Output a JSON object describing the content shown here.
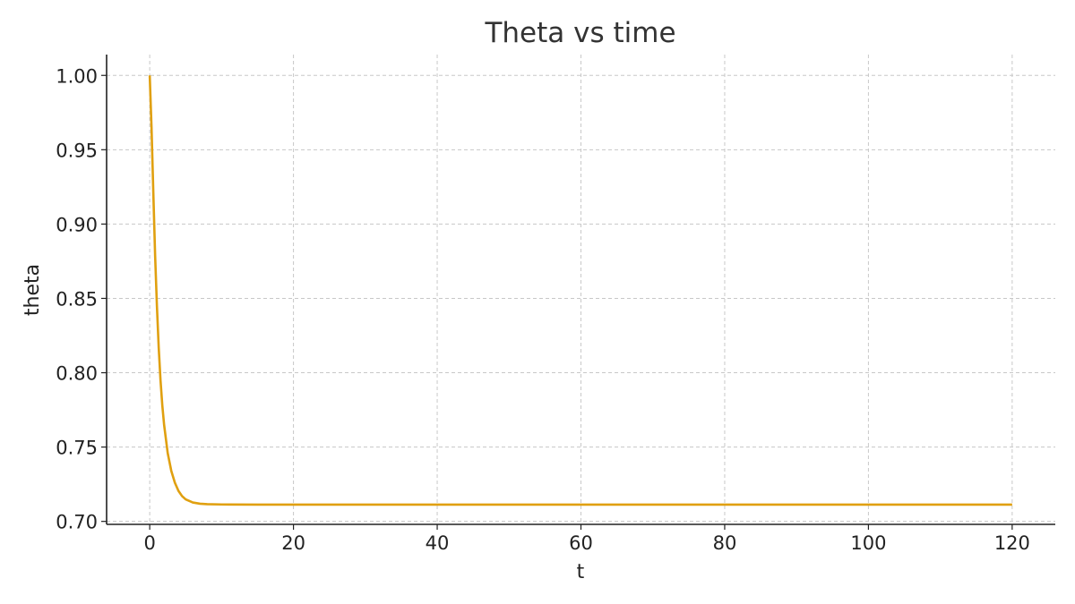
{
  "chart_data": {
    "type": "line",
    "title": "Theta vs time",
    "xlabel": "t",
    "ylabel": "theta",
    "xlim": [
      -6,
      126
    ],
    "ylim": [
      0.698,
      1.014
    ],
    "xticks": [
      0,
      20,
      40,
      60,
      80,
      100,
      120
    ],
    "yticks": [
      0.7,
      0.75,
      0.8,
      0.85,
      0.9,
      0.95,
      1.0
    ],
    "ytick_labels": [
      "0.70",
      "0.75",
      "0.80",
      "0.85",
      "0.90",
      "0.95",
      "1.00"
    ],
    "xtick_labels": [
      "0",
      "20",
      "40",
      "60",
      "80",
      "100",
      "120"
    ],
    "grid": true,
    "series": [
      {
        "color": "#E0A010",
        "x": [
          0,
          0.25,
          0.5,
          0.75,
          1,
          1.25,
          1.5,
          1.75,
          2,
          2.5,
          3,
          3.5,
          4,
          4.5,
          5,
          6,
          7,
          8,
          10,
          15,
          20,
          30,
          40,
          60,
          80,
          100,
          120
        ],
        "y": [
          1.0,
          0.965,
          0.921,
          0.879,
          0.845,
          0.817,
          0.795,
          0.778,
          0.765,
          0.746,
          0.734,
          0.726,
          0.7205,
          0.717,
          0.7148,
          0.7127,
          0.7119,
          0.7116,
          0.7114,
          0.7113,
          0.7113,
          0.7113,
          0.7113,
          0.7113,
          0.7113,
          0.7113,
          0.7113
        ]
      }
    ]
  }
}
